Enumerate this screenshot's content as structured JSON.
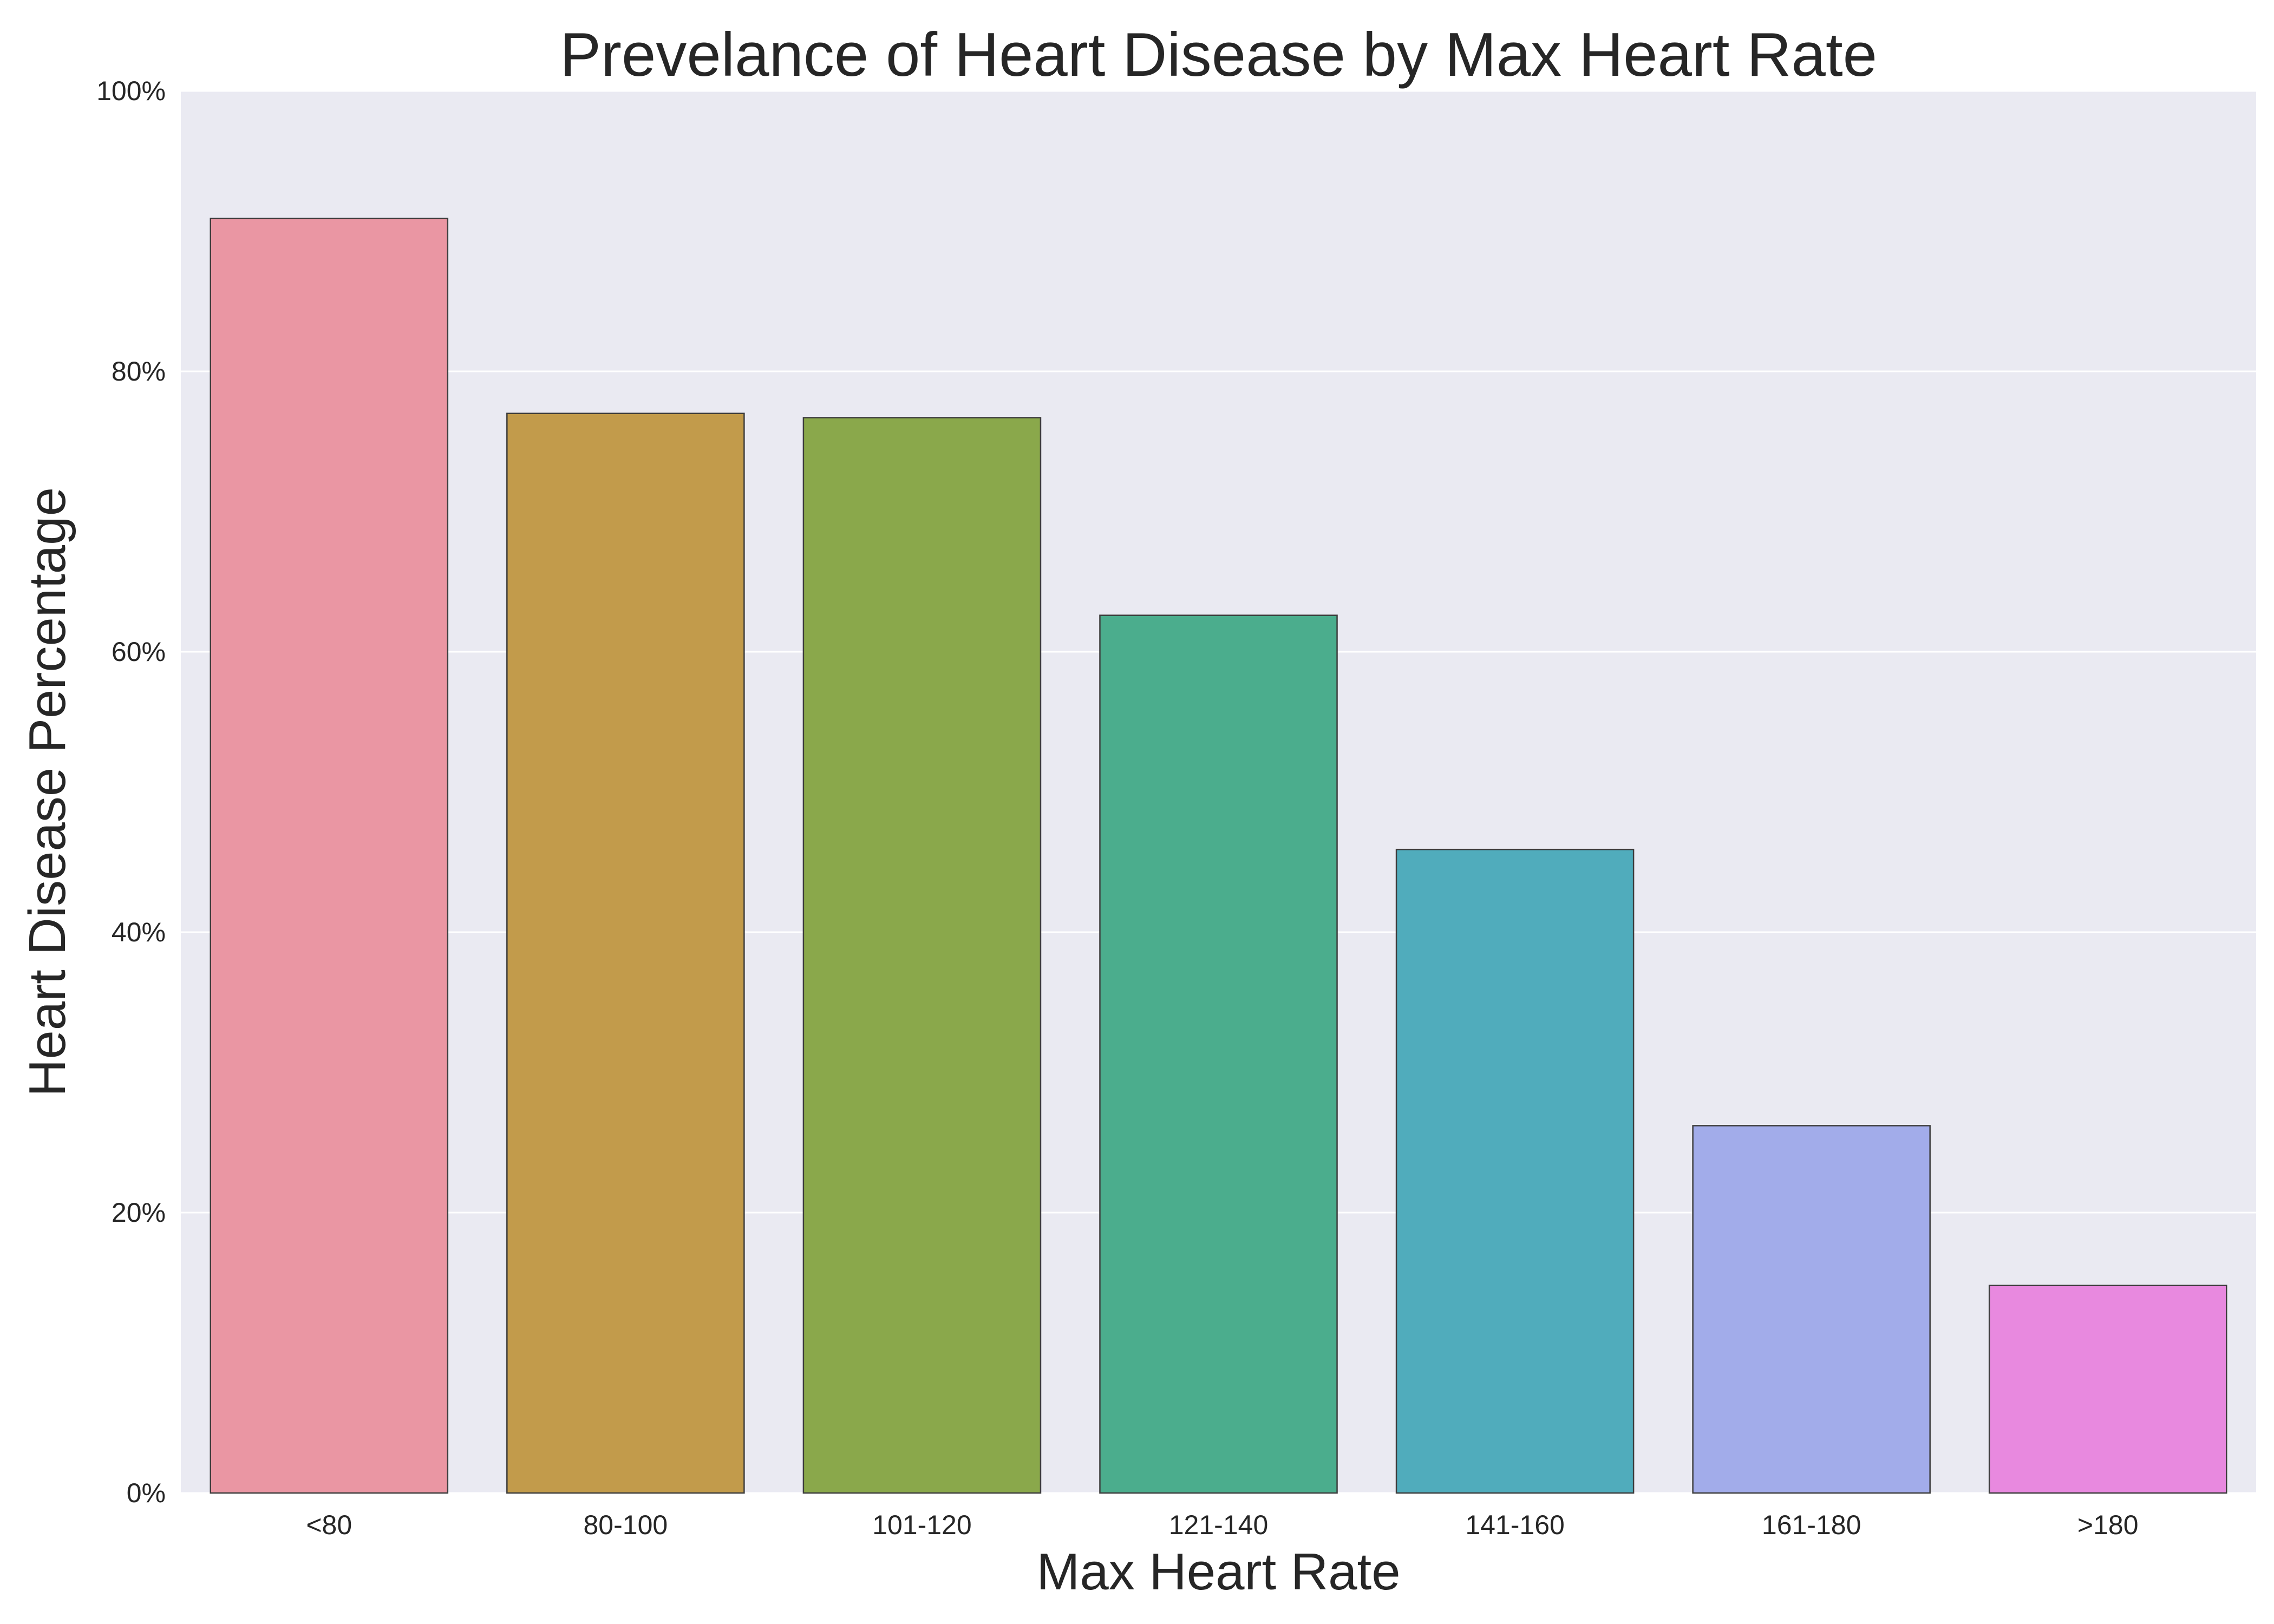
{
  "chart_data": {
    "type": "bar",
    "title": "Prevelance of Heart Disease by Max Heart Rate",
    "xlabel": "Max Heart Rate",
    "ylabel": "Heart Disease Percentage",
    "categories": [
      "<80",
      "80-100",
      "101-120",
      "121-140",
      "141-160",
      "161-180",
      ">180"
    ],
    "values": [
      90.9,
      77.0,
      76.7,
      62.6,
      45.9,
      26.2,
      14.8
    ],
    "value_unit": "percent",
    "ylim": [
      0,
      100
    ],
    "yticks": [
      0,
      20,
      40,
      60,
      80,
      100
    ],
    "ytick_labels": [
      "0%",
      "20%",
      "40%",
      "60%",
      "80%",
      "100%"
    ],
    "colors": [
      "#ea96a3",
      "#c29b4b",
      "#8aa84b",
      "#4bad8d",
      "#50acbc",
      "#a2acea",
      "#e889df"
    ],
    "plot_background": "#eaeaf2",
    "grid": true,
    "grid_color": "#ffffff",
    "legend": "none"
  }
}
